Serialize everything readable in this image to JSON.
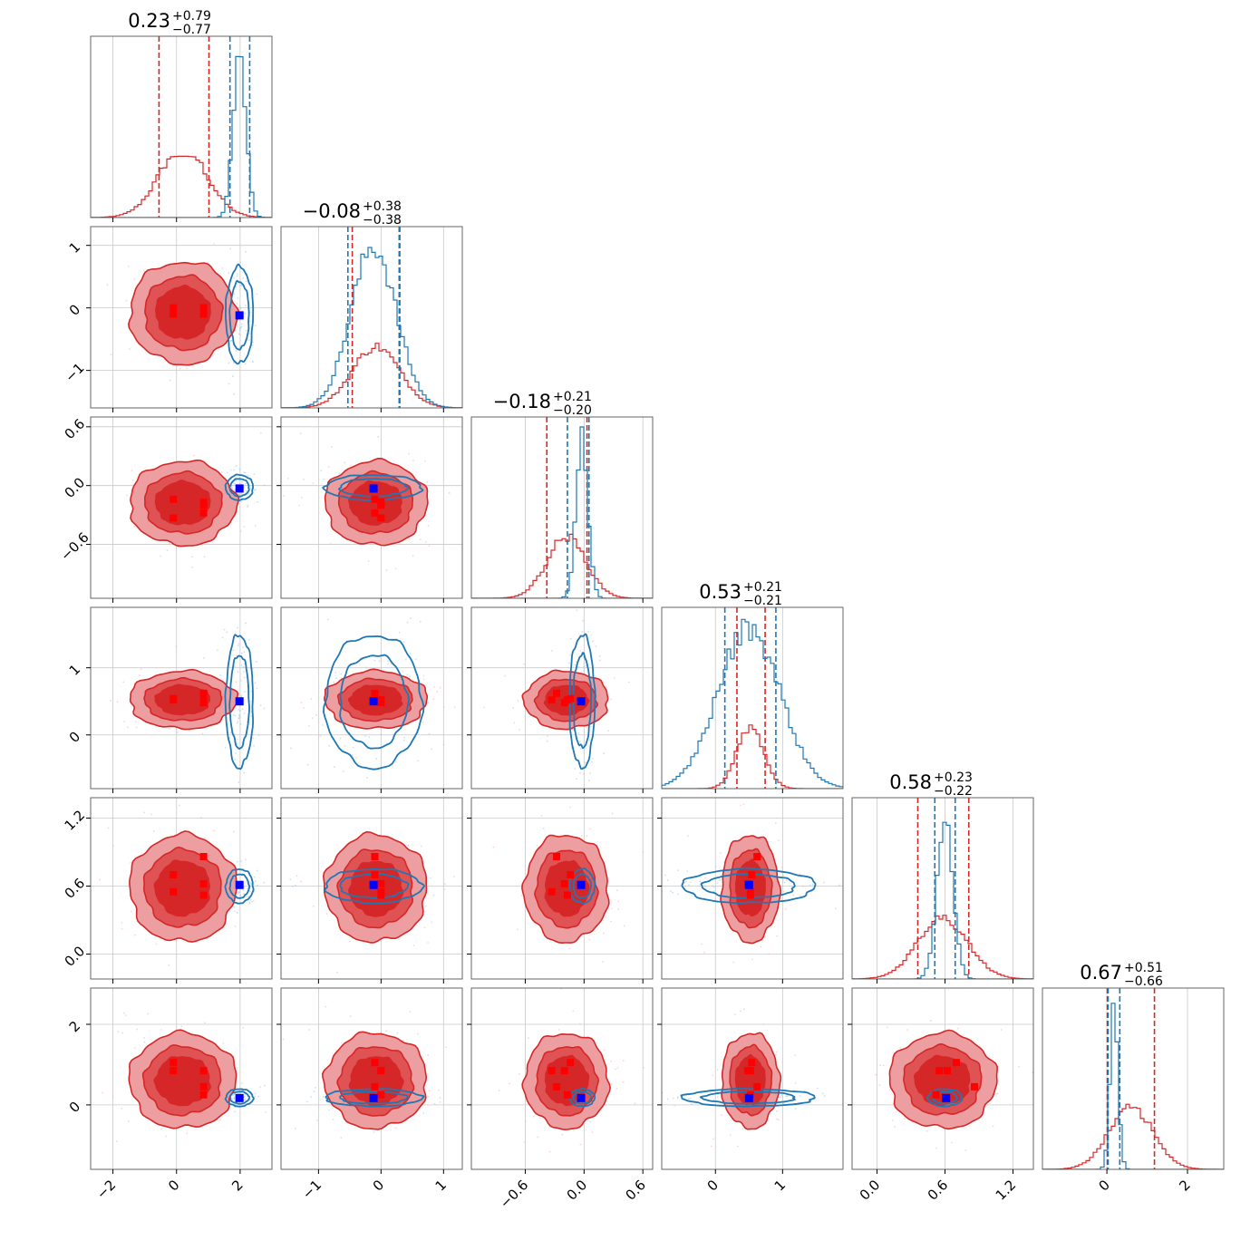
{
  "figure": {
    "title": ""
  },
  "colors": {
    "red": "#d62728",
    "red_light": "#ec9ea0",
    "red_mid": "#e05355",
    "blue": "#1f77b4",
    "blue_marker": "#0000ff",
    "red_marker": "#ff0000",
    "grid": "#c8c8c8"
  },
  "chart_data": {
    "type": "corner",
    "n_params": 6,
    "axis_labels": [
      "",
      "",
      "",
      "",
      "",
      ""
    ],
    "ranges": [
      [
        -2.7,
        3.0
      ],
      [
        -1.6,
        1.3
      ],
      [
        -1.15,
        0.7
      ],
      [
        -0.8,
        1.9
      ],
      [
        -0.22,
        1.38
      ],
      [
        -1.6,
        2.9
      ]
    ],
    "ticks": [
      {
        "values": [
          -2,
          0,
          2
        ],
        "labels": [
          "−2",
          "0",
          "2"
        ]
      },
      {
        "values": [
          -1,
          0,
          1
        ],
        "labels": [
          "−1",
          "0",
          "1"
        ]
      },
      {
        "values": [
          -0.6,
          0.0,
          0.6
        ],
        "labels": [
          "−0.6",
          "0.0",
          "0.6"
        ]
      },
      {
        "values": [
          0,
          1
        ],
        "labels": [
          "0",
          "1"
        ]
      },
      {
        "values": [
          0.0,
          0.6,
          1.2
        ],
        "labels": [
          "0.0",
          "0.6",
          "1.2"
        ]
      },
      {
        "values": [
          0,
          2
        ],
        "labels": [
          "0",
          "2"
        ]
      }
    ],
    "titles": [
      {
        "median": "0.23",
        "plus": "+0.79",
        "minus": "−0.77"
      },
      {
        "median": "−0.08",
        "plus": "+0.38",
        "minus": "−0.38"
      },
      {
        "median": "−0.18",
        "plus": "+0.21",
        "minus": "−0.20"
      },
      {
        "median": "0.53",
        "plus": "+0.21",
        "minus": "−0.21"
      },
      {
        "median": "0.58",
        "plus": "+0.23",
        "minus": "−0.22"
      },
      {
        "median": "0.67",
        "plus": "+0.51",
        "minus": "−0.66"
      }
    ],
    "series": [
      {
        "color": "#d62728",
        "mean": [
          0.2,
          -0.08,
          -0.18,
          0.52,
          0.58,
          0.6
        ],
        "std": [
          0.78,
          0.38,
          0.2,
          0.2,
          0.22,
          0.55
        ],
        "quantiles": [
          [
            -0.55,
            1.02
          ],
          [
            -0.46,
            0.3
          ],
          [
            -0.38,
            0.03
          ],
          [
            0.32,
            0.74
          ],
          [
            0.36,
            0.81
          ],
          [
            0.01,
            1.18
          ]
        ],
        "hist_peak": 0.38
      },
      {
        "color": "#1f77b4",
        "mean": [
          1.98,
          -0.12,
          -0.02,
          0.5,
          0.6,
          0.18
        ],
        "std": [
          0.2,
          0.36,
          0.06,
          0.46,
          0.07,
          0.1
        ],
        "quantiles": [
          [
            1.68,
            2.3
          ],
          [
            -0.53,
            0.29
          ],
          [
            -0.17,
            0.05
          ],
          [
            0.14,
            0.9
          ],
          [
            0.51,
            0.69
          ],
          [
            0.03,
            0.32
          ]
        ],
        "hist_peak": 1.0
      }
    ],
    "markers": {
      "blue": [
        1.98,
        -0.12,
        -0.03,
        0.5,
        0.61,
        0.17
      ],
      "red": [
        [
          -0.1,
          -0.1,
          -0.14,
          0.54,
          0.7,
          1.05
        ],
        [
          0.85,
          -0.1,
          -0.28,
          0.62,
          0.86,
          0.45
        ],
        [
          -0.1,
          0.0,
          -0.33,
          0.52,
          0.55,
          0.85
        ],
        [
          0.85,
          0.0,
          -0.17,
          0.52,
          0.52,
          0.25
        ],
        [
          0.85,
          0.0,
          -0.2,
          0.48,
          0.62,
          0.85
        ]
      ]
    },
    "grid": true,
    "legend": "none"
  }
}
